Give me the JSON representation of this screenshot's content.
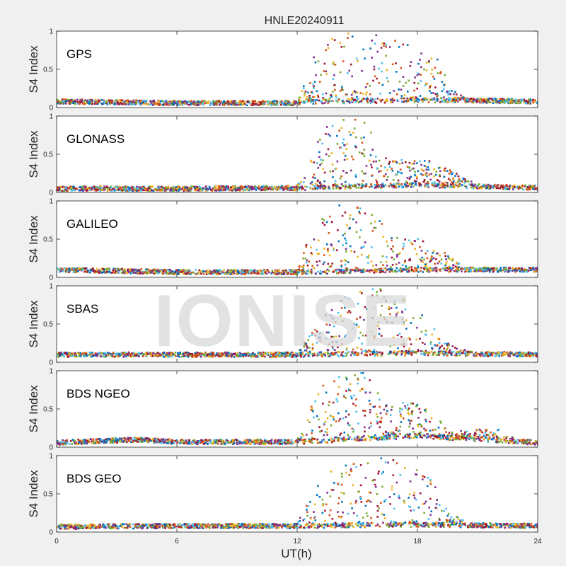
{
  "watermark": "IONISE",
  "chart_data": {
    "type": "scatter",
    "title": "HNLE20240911",
    "xlabel": "UT(h)",
    "ylabel": "S4 Index",
    "xlim": [
      0,
      24
    ],
    "ylim": [
      0,
      1
    ],
    "xticks": [
      0,
      6,
      12,
      18,
      24
    ],
    "yticks": [
      0,
      0.5,
      1
    ],
    "ytick_labels": [
      "0",
      "0.5",
      "1"
    ],
    "grid": false,
    "legend": "none",
    "colors": [
      "#0072BD",
      "#D95319",
      "#EDB120",
      "#7E2F8E",
      "#77AC30",
      "#4DBEEE",
      "#A2142F"
    ],
    "panels": [
      {
        "label": "GPS",
        "baseline": [
          {
            "x": 0,
            "y": 0.08
          },
          {
            "x": 6,
            "y": 0.06
          },
          {
            "x": 12,
            "y": 0.06
          },
          {
            "x": 12.5,
            "y": 0.08
          },
          {
            "x": 19,
            "y": 0.1
          },
          {
            "x": 24,
            "y": 0.08
          }
        ],
        "envelope": [
          {
            "x": 12,
            "y": 0.1
          },
          {
            "x": 12.6,
            "y": 0.6
          },
          {
            "x": 13.5,
            "y": 0.9
          },
          {
            "x": 14.5,
            "y": 1.0
          },
          {
            "x": 16,
            "y": 0.95
          },
          {
            "x": 17.5,
            "y": 0.85
          },
          {
            "x": 19,
            "y": 0.7
          },
          {
            "x": 19.6,
            "y": 0.3
          },
          {
            "x": 20.5,
            "y": 0.12
          }
        ]
      },
      {
        "label": "GLONASS",
        "baseline": [
          {
            "x": 0,
            "y": 0.05
          },
          {
            "x": 6,
            "y": 0.05
          },
          {
            "x": 12,
            "y": 0.06
          },
          {
            "x": 15,
            "y": 0.08
          },
          {
            "x": 18,
            "y": 0.1
          },
          {
            "x": 24,
            "y": 0.06
          }
        ],
        "envelope": [
          {
            "x": 12,
            "y": 0.1
          },
          {
            "x": 12.8,
            "y": 0.6
          },
          {
            "x": 13.5,
            "y": 0.9
          },
          {
            "x": 14.5,
            "y": 1.0
          },
          {
            "x": 15.5,
            "y": 0.95
          },
          {
            "x": 16,
            "y": 0.5
          },
          {
            "x": 17,
            "y": 0.45
          },
          {
            "x": 18,
            "y": 0.5
          },
          {
            "x": 20,
            "y": 0.25
          },
          {
            "x": 21,
            "y": 0.1
          }
        ]
      },
      {
        "label": "GALILEO",
        "baseline": [
          {
            "x": 0,
            "y": 0.1
          },
          {
            "x": 6,
            "y": 0.07
          },
          {
            "x": 12,
            "y": 0.07
          },
          {
            "x": 18,
            "y": 0.1
          },
          {
            "x": 24,
            "y": 0.1
          }
        ],
        "envelope": [
          {
            "x": 12,
            "y": 0.1
          },
          {
            "x": 12.8,
            "y": 0.7
          },
          {
            "x": 13.5,
            "y": 0.95
          },
          {
            "x": 15,
            "y": 1.0
          },
          {
            "x": 16,
            "y": 0.85
          },
          {
            "x": 17,
            "y": 0.55
          },
          {
            "x": 18.5,
            "y": 0.5
          },
          {
            "x": 19.5,
            "y": 0.3
          },
          {
            "x": 20.5,
            "y": 0.12
          }
        ]
      },
      {
        "label": "SBAS",
        "baseline": [
          {
            "x": 0,
            "y": 0.1
          },
          {
            "x": 6,
            "y": 0.1
          },
          {
            "x": 12,
            "y": 0.1
          },
          {
            "x": 18,
            "y": 0.12
          },
          {
            "x": 24,
            "y": 0.1
          }
        ],
        "envelope": [
          {
            "x": 12,
            "y": 0.12
          },
          {
            "x": 13,
            "y": 0.5
          },
          {
            "x": 14.5,
            "y": 0.95
          },
          {
            "x": 16,
            "y": 1.0
          },
          {
            "x": 17.5,
            "y": 0.8
          },
          {
            "x": 18.5,
            "y": 0.6
          },
          {
            "x": 19.5,
            "y": 0.25
          },
          {
            "x": 20.5,
            "y": 0.15
          }
        ]
      },
      {
        "label": "BDS NGEO",
        "baseline": [
          {
            "x": 0,
            "y": 0.06
          },
          {
            "x": 4,
            "y": 0.1
          },
          {
            "x": 6,
            "y": 0.07
          },
          {
            "x": 12,
            "y": 0.07
          },
          {
            "x": 18,
            "y": 0.15
          },
          {
            "x": 24,
            "y": 0.06
          }
        ],
        "envelope": [
          {
            "x": 12,
            "y": 0.1
          },
          {
            "x": 12.7,
            "y": 0.6
          },
          {
            "x": 13.5,
            "y": 0.9
          },
          {
            "x": 15.5,
            "y": 1.0
          },
          {
            "x": 16.5,
            "y": 0.6
          },
          {
            "x": 17.5,
            "y": 0.6
          },
          {
            "x": 18.5,
            "y": 0.6
          },
          {
            "x": 19.5,
            "y": 0.2
          },
          {
            "x": 22,
            "y": 0.25
          },
          {
            "x": 23,
            "y": 0.1
          }
        ]
      },
      {
        "label": "BDS GEO",
        "baseline": [
          {
            "x": 0,
            "y": 0.07
          },
          {
            "x": 6,
            "y": 0.08
          },
          {
            "x": 12,
            "y": 0.08
          },
          {
            "x": 18,
            "y": 0.1
          },
          {
            "x": 24,
            "y": 0.08
          }
        ],
        "envelope": [
          {
            "x": 12,
            "y": 0.1
          },
          {
            "x": 12.5,
            "y": 0.4
          },
          {
            "x": 13.5,
            "y": 0.8
          },
          {
            "x": 15.5,
            "y": 1.0
          },
          {
            "x": 17,
            "y": 0.95
          },
          {
            "x": 18.5,
            "y": 0.8
          },
          {
            "x": 19.5,
            "y": 0.3
          },
          {
            "x": 20.5,
            "y": 0.12
          }
        ]
      }
    ]
  }
}
